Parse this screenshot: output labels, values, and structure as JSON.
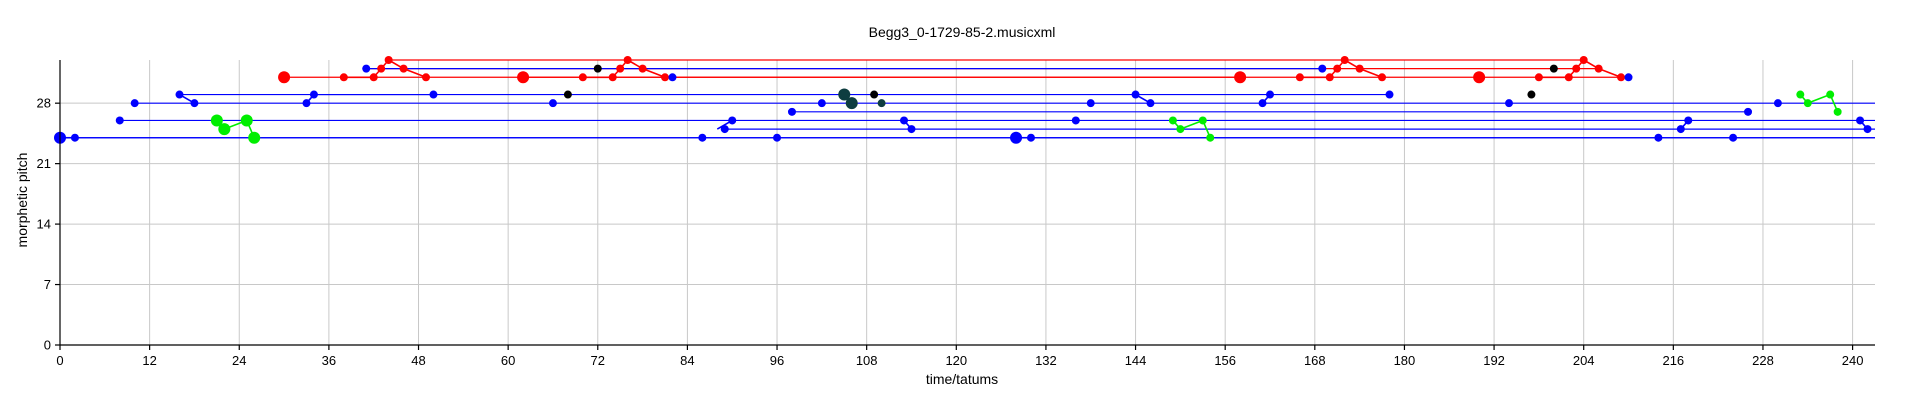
{
  "chart_data": {
    "type": "scatter",
    "title": "Begg3_0-1729-85-2.musicxml",
    "xlabel": "time/tatums",
    "ylabel": "morphetic pitch",
    "xlim": [
      0,
      243
    ],
    "ylim": [
      0,
      33
    ],
    "xticks": [
      0,
      12,
      24,
      36,
      48,
      60,
      72,
      84,
      96,
      108,
      120,
      132,
      144,
      156,
      168,
      180,
      192,
      204,
      216,
      228,
      240
    ],
    "yticks": [
      0,
      7,
      14,
      21,
      28
    ],
    "grid": true,
    "colors": {
      "red": "#ff0000",
      "blue": "#0000ff",
      "green": "#00ee00",
      "black": "#000000",
      "darkteal": "#0e3d40"
    },
    "series": [
      {
        "color": "red",
        "points": [
          {
            "x": 30,
            "y": 31,
            "big": true
          },
          {
            "x": 38,
            "y": 31
          },
          {
            "x": 42,
            "y": 31
          },
          {
            "x": 43,
            "y": 32
          },
          {
            "x": 44,
            "y": 33
          },
          {
            "x": 46,
            "y": 32
          },
          {
            "x": 49,
            "y": 31
          },
          {
            "x": 62,
            "y": 31,
            "big": true
          },
          {
            "x": 70,
            "y": 31
          },
          {
            "x": 74,
            "y": 31
          },
          {
            "x": 75,
            "y": 32
          },
          {
            "x": 76,
            "y": 33
          },
          {
            "x": 78,
            "y": 32
          },
          {
            "x": 81,
            "y": 31
          },
          {
            "x": 158,
            "y": 31,
            "big": true
          },
          {
            "x": 166,
            "y": 31
          },
          {
            "x": 170,
            "y": 31
          },
          {
            "x": 171,
            "y": 32
          },
          {
            "x": 172,
            "y": 33
          },
          {
            "x": 174,
            "y": 32
          },
          {
            "x": 177,
            "y": 31
          },
          {
            "x": 190,
            "y": 31,
            "big": true
          },
          {
            "x": 198,
            "y": 31
          },
          {
            "x": 202,
            "y": 31
          },
          {
            "x": 203,
            "y": 32
          },
          {
            "x": 204,
            "y": 33
          },
          {
            "x": 206,
            "y": 32
          },
          {
            "x": 209,
            "y": 31
          }
        ],
        "connectors": [
          [
            38,
            31,
            42,
            31
          ],
          [
            42,
            31,
            43,
            32
          ],
          [
            43,
            32,
            44,
            33
          ],
          [
            44,
            33,
            46,
            32
          ],
          [
            46,
            32,
            49,
            31
          ],
          [
            70,
            31,
            74,
            31
          ],
          [
            74,
            31,
            75,
            32
          ],
          [
            75,
            32,
            76,
            33
          ],
          [
            76,
            33,
            78,
            32
          ],
          [
            78,
            32,
            81,
            31
          ],
          [
            166,
            31,
            170,
            31
          ],
          [
            170,
            31,
            171,
            32
          ],
          [
            171,
            32,
            172,
            33
          ],
          [
            172,
            33,
            174,
            32
          ],
          [
            174,
            32,
            177,
            31
          ],
          [
            198,
            31,
            202,
            31
          ],
          [
            202,
            31,
            203,
            32
          ],
          [
            203,
            32,
            204,
            33
          ],
          [
            204,
            33,
            206,
            32
          ],
          [
            206,
            32,
            209,
            31
          ]
        ],
        "spans": [
          [
            30,
            31,
            210,
            31
          ],
          [
            41,
            32,
            206,
            32
          ],
          [
            44,
            33,
            204,
            33
          ],
          [
            62,
            31,
            158,
            31
          ]
        ]
      },
      {
        "color": "blue",
        "points": [
          {
            "x": 0,
            "y": 24,
            "big": true
          },
          {
            "x": 2,
            "y": 24
          },
          {
            "x": 8,
            "y": 26
          },
          {
            "x": 10,
            "y": 28
          },
          {
            "x": 16,
            "y": 29
          },
          {
            "x": 18,
            "y": 28
          },
          {
            "x": 33,
            "y": 28
          },
          {
            "x": 34,
            "y": 29
          },
          {
            "x": 41,
            "y": 32
          },
          {
            "x": 50,
            "y": 29
          },
          {
            "x": 66,
            "y": 28
          },
          {
            "x": 82,
            "y": 31
          },
          {
            "x": 86,
            "y": 24
          },
          {
            "x": 89,
            "y": 25
          },
          {
            "x": 90,
            "y": 26
          },
          {
            "x": 96,
            "y": 24
          },
          {
            "x": 98,
            "y": 27
          },
          {
            "x": 102,
            "y": 28
          },
          {
            "x": 113,
            "y": 26
          },
          {
            "x": 114,
            "y": 25
          },
          {
            "x": 128,
            "y": 24,
            "big": true
          },
          {
            "x": 130,
            "y": 24
          },
          {
            "x": 136,
            "y": 26
          },
          {
            "x": 138,
            "y": 28
          },
          {
            "x": 144,
            "y": 29
          },
          {
            "x": 146,
            "y": 28
          },
          {
            "x": 161,
            "y": 28
          },
          {
            "x": 162,
            "y": 29
          },
          {
            "x": 169,
            "y": 32
          },
          {
            "x": 178,
            "y": 29
          },
          {
            "x": 194,
            "y": 28
          },
          {
            "x": 210,
            "y": 31
          },
          {
            "x": 214,
            "y": 24
          },
          {
            "x": 217,
            "y": 25
          },
          {
            "x": 218,
            "y": 26
          },
          {
            "x": 224,
            "y": 24
          },
          {
            "x": 226,
            "y": 27
          },
          {
            "x": 230,
            "y": 28
          },
          {
            "x": 241,
            "y": 26
          },
          {
            "x": 242,
            "y": 25
          }
        ],
        "connectors": [
          [
            0,
            24,
            2,
            24
          ],
          [
            16,
            29,
            18,
            28
          ],
          [
            33,
            28,
            34,
            29
          ],
          [
            88,
            25,
            90,
            26
          ],
          [
            113,
            26,
            114,
            25
          ],
          [
            128,
            24,
            130,
            24
          ],
          [
            144,
            29,
            146,
            28
          ],
          [
            161,
            28,
            162,
            29
          ],
          [
            217,
            25,
            218,
            26
          ],
          [
            241,
            26,
            242,
            25
          ]
        ],
        "spans": [
          [
            0,
            24,
            128,
            24
          ],
          [
            2,
            24,
            243,
            24
          ],
          [
            8,
            26,
            243,
            26
          ],
          [
            10,
            28,
            243,
            28
          ],
          [
            16,
            29,
            178,
            29
          ],
          [
            34,
            29,
            50,
            29
          ],
          [
            41,
            32,
            169,
            32
          ],
          [
            89,
            25,
            243,
            25
          ],
          [
            98,
            27,
            226,
            27
          ],
          [
            130,
            24,
            243,
            24
          ]
        ]
      },
      {
        "color": "green",
        "points": [
          {
            "x": 21,
            "y": 26,
            "big": true
          },
          {
            "x": 22,
            "y": 25,
            "big": true
          },
          {
            "x": 25,
            "y": 26,
            "big": true
          },
          {
            "x": 26,
            "y": 24,
            "big": true
          },
          {
            "x": 149,
            "y": 26
          },
          {
            "x": 150,
            "y": 25
          },
          {
            "x": 153,
            "y": 26
          },
          {
            "x": 154,
            "y": 24
          },
          {
            "x": 233,
            "y": 29
          },
          {
            "x": 234,
            "y": 28
          },
          {
            "x": 237,
            "y": 29
          },
          {
            "x": 238,
            "y": 27
          }
        ],
        "connectors": [
          [
            21,
            26,
            22,
            25
          ],
          [
            22,
            25,
            25,
            26
          ],
          [
            25,
            26,
            26,
            24
          ],
          [
            149,
            26,
            150,
            25
          ],
          [
            150,
            25,
            153,
            26
          ],
          [
            153,
            26,
            154,
            24
          ],
          [
            233,
            29,
            234,
            28
          ],
          [
            234,
            28,
            237,
            29
          ],
          [
            237,
            29,
            238,
            27
          ]
        ],
        "spans": []
      },
      {
        "color": "black",
        "points": [
          {
            "x": 72,
            "y": 32
          },
          {
            "x": 68,
            "y": 29
          },
          {
            "x": 109,
            "y": 29
          },
          {
            "x": 200,
            "y": 32
          },
          {
            "x": 197,
            "y": 29
          }
        ],
        "connectors": [],
        "spans": []
      },
      {
        "color": "darkteal",
        "points": [
          {
            "x": 105,
            "y": 29,
            "big": true
          },
          {
            "x": 106,
            "y": 28,
            "big": true
          },
          {
            "x": 110,
            "y": 28
          }
        ],
        "connectors": [
          [
            105,
            29,
            106,
            28
          ]
        ],
        "spans": []
      }
    ]
  }
}
